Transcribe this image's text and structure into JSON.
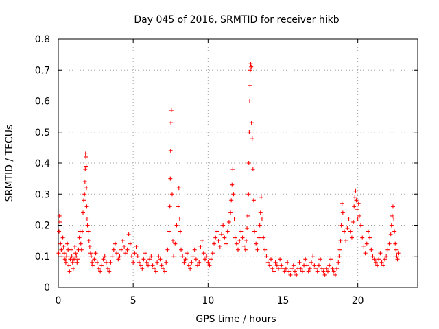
{
  "chart_data": {
    "type": "scatter",
    "title": "Day 045 of 2016, SRMTID for receiver hikb",
    "xlabel": "GPS time / hours",
    "ylabel": "SRMTID / TECUs",
    "xlim": [
      0,
      24
    ],
    "ylim": [
      0,
      0.8
    ],
    "xticks": [
      0,
      5,
      10,
      15,
      20
    ],
    "yticks": [
      0,
      0.1,
      0.2,
      0.3,
      0.4,
      0.5,
      0.6,
      0.7,
      0.8
    ],
    "xtick_labels": [
      "0",
      "5",
      "10",
      "15",
      "20"
    ],
    "ytick_labels": [
      "0",
      "0.1",
      "0.2",
      "0.3",
      "0.4",
      "0.5",
      "0.6",
      "0.7",
      "0.8"
    ],
    "grid": true,
    "marker": "+",
    "color": "#ff0000",
    "series": [
      {
        "name": "SRMTID",
        "x": [
          0.02,
          0.05,
          0.08,
          0.1,
          0.15,
          0.2,
          0.25,
          0.3,
          0.35,
          0.4,
          0.45,
          0.5,
          0.55,
          0.6,
          0.65,
          0.7,
          0.75,
          0.8,
          0.85,
          0.9,
          0.95,
          1.0,
          1.05,
          1.1,
          1.15,
          1.2,
          1.25,
          1.3,
          1.35,
          1.4,
          1.45,
          1.5,
          1.55,
          1.6,
          1.65,
          1.7,
          1.75,
          1.78,
          1.8,
          1.82,
          1.84,
          1.86,
          1.88,
          1.9,
          1.92,
          1.95,
          2.0,
          2.05,
          2.1,
          2.15,
          2.2,
          2.25,
          2.3,
          2.4,
          2.5,
          2.6,
          2.7,
          2.8,
          2.9,
          3.0,
          3.1,
          3.2,
          3.3,
          3.4,
          3.5,
          3.6,
          3.7,
          3.8,
          3.9,
          4.0,
          4.1,
          4.2,
          4.3,
          4.4,
          4.5,
          4.6,
          4.7,
          4.8,
          4.9,
          5.0,
          5.1,
          5.2,
          5.3,
          5.4,
          5.5,
          5.6,
          5.7,
          5.8,
          5.9,
          6.0,
          6.1,
          6.2,
          6.3,
          6.4,
          6.5,
          6.6,
          6.7,
          6.8,
          6.9,
          7.0,
          7.1,
          7.2,
          7.3,
          7.4,
          7.45,
          7.48,
          7.5,
          7.52,
          7.55,
          7.6,
          7.65,
          7.7,
          7.8,
          7.9,
          8.0,
          8.05,
          8.1,
          8.15,
          8.2,
          8.3,
          8.4,
          8.5,
          8.6,
          8.7,
          8.8,
          8.9,
          9.0,
          9.1,
          9.2,
          9.3,
          9.4,
          9.5,
          9.6,
          9.7,
          9.8,
          9.9,
          10.0,
          10.1,
          10.2,
          10.3,
          10.4,
          10.5,
          10.6,
          10.7,
          10.8,
          10.9,
          11.0,
          11.1,
          11.2,
          11.3,
          11.4,
          11.5,
          11.55,
          11.6,
          11.65,
          11.7,
          11.75,
          11.8,
          11.9,
          12.0,
          12.1,
          12.2,
          12.3,
          12.4,
          12.5,
          12.55,
          12.6,
          12.65,
          12.7,
          12.72,
          12.75,
          12.78,
          12.8,
          12.82,
          12.85,
          12.88,
          12.9,
          12.95,
          13.0,
          13.05,
          13.1,
          13.2,
          13.3,
          13.4,
          13.45,
          13.5,
          13.55,
          13.6,
          13.7,
          13.8,
          13.9,
          14.0,
          14.1,
          14.2,
          14.3,
          14.4,
          14.5,
          14.6,
          14.7,
          14.8,
          14.9,
          15.0,
          15.1,
          15.2,
          15.3,
          15.4,
          15.5,
          15.6,
          15.7,
          15.8,
          15.9,
          16.0,
          16.1,
          16.2,
          16.3,
          16.4,
          16.5,
          16.6,
          16.7,
          16.8,
          16.9,
          17.0,
          17.1,
          17.2,
          17.3,
          17.4,
          17.5,
          17.6,
          17.7,
          17.8,
          17.9,
          18.0,
          18.1,
          18.2,
          18.3,
          18.4,
          18.5,
          18.6,
          18.7,
          18.75,
          18.8,
          18.85,
          18.9,
          18.95,
          19.0,
          19.1,
          19.2,
          19.3,
          19.4,
          19.5,
          19.6,
          19.7,
          19.75,
          19.8,
          19.85,
          19.9,
          19.95,
          20.0,
          20.05,
          20.1,
          20.2,
          20.3,
          20.4,
          20.5,
          20.6,
          20.7,
          20.8,
          20.9,
          21.0,
          21.1,
          21.2,
          21.3,
          21.4,
          21.5,
          21.6,
          21.7,
          21.8,
          21.9,
          22.0,
          22.1,
          22.2,
          22.25,
          22.3,
          22.35,
          22.4,
          22.45,
          22.5,
          22.55,
          22.6,
          22.65,
          22.7
        ],
        "y": [
          0.11,
          0.18,
          0.23,
          0.21,
          0.14,
          0.12,
          0.1,
          0.16,
          0.13,
          0.11,
          0.09,
          0.08,
          0.1,
          0.14,
          0.12,
          0.07,
          0.05,
          0.09,
          0.12,
          0.1,
          0.08,
          0.06,
          0.09,
          0.13,
          0.11,
          0.1,
          0.08,
          0.09,
          0.12,
          0.16,
          0.18,
          0.14,
          0.12,
          0.18,
          0.24,
          0.28,
          0.3,
          0.34,
          0.38,
          0.43,
          0.42,
          0.39,
          0.32,
          0.26,
          0.22,
          0.2,
          0.18,
          0.15,
          0.13,
          0.11,
          0.1,
          0.08,
          0.07,
          0.09,
          0.11,
          0.08,
          0.06,
          0.05,
          0.07,
          0.09,
          0.1,
          0.08,
          0.06,
          0.05,
          0.08,
          0.1,
          0.12,
          0.14,
          0.11,
          0.09,
          0.1,
          0.12,
          0.15,
          0.13,
          0.11,
          0.12,
          0.17,
          0.14,
          0.1,
          0.08,
          0.11,
          0.13,
          0.1,
          0.08,
          0.07,
          0.06,
          0.09,
          0.11,
          0.08,
          0.07,
          0.09,
          0.1,
          0.07,
          0.06,
          0.05,
          0.08,
          0.1,
          0.09,
          0.07,
          0.06,
          0.05,
          0.08,
          0.12,
          0.18,
          0.26,
          0.35,
          0.44,
          0.53,
          0.57,
          0.3,
          0.15,
          0.1,
          0.14,
          0.2,
          0.26,
          0.32,
          0.22,
          0.18,
          0.12,
          0.1,
          0.08,
          0.09,
          0.11,
          0.07,
          0.06,
          0.08,
          0.1,
          0.12,
          0.09,
          0.07,
          0.08,
          0.13,
          0.15,
          0.11,
          0.09,
          0.1,
          0.08,
          0.07,
          0.09,
          0.11,
          0.14,
          0.16,
          0.18,
          0.15,
          0.13,
          0.17,
          0.2,
          0.16,
          0.14,
          0.18,
          0.21,
          0.24,
          0.28,
          0.33,
          0.38,
          0.3,
          0.22,
          0.16,
          0.14,
          0.12,
          0.15,
          0.18,
          0.16,
          0.13,
          0.12,
          0.15,
          0.19,
          0.23,
          0.3,
          0.4,
          0.5,
          0.6,
          0.65,
          0.7,
          0.72,
          0.71,
          0.53,
          0.48,
          0.38,
          0.28,
          0.18,
          0.14,
          0.12,
          0.16,
          0.2,
          0.24,
          0.29,
          0.22,
          0.16,
          0.12,
          0.1,
          0.08,
          0.07,
          0.09,
          0.06,
          0.05,
          0.08,
          0.07,
          0.06,
          0.09,
          0.07,
          0.06,
          0.05,
          0.06,
          0.08,
          0.05,
          0.04,
          0.06,
          0.07,
          0.05,
          0.04,
          0.06,
          0.08,
          0.06,
          0.05,
          0.07,
          0.09,
          0.07,
          0.05,
          0.06,
          0.08,
          0.1,
          0.07,
          0.06,
          0.05,
          0.07,
          0.09,
          0.06,
          0.05,
          0.04,
          0.06,
          0.05,
          0.07,
          0.09,
          0.06,
          0.05,
          0.04,
          0.06,
          0.08,
          0.1,
          0.12,
          0.15,
          0.2,
          0.27,
          0.24,
          0.18,
          0.15,
          0.19,
          0.22,
          0.18,
          0.16,
          0.21,
          0.26,
          0.29,
          0.31,
          0.28,
          0.25,
          0.22,
          0.27,
          0.23,
          0.2,
          0.16,
          0.13,
          0.11,
          0.14,
          0.18,
          0.16,
          0.12,
          0.1,
          0.09,
          0.08,
          0.07,
          0.09,
          0.11,
          0.08,
          0.07,
          0.09,
          0.1,
          0.12,
          0.14,
          0.17,
          0.2,
          0.23,
          0.26,
          0.22,
          0.18,
          0.14,
          0.12,
          0.1,
          0.09,
          0.11
        ]
      }
    ]
  }
}
